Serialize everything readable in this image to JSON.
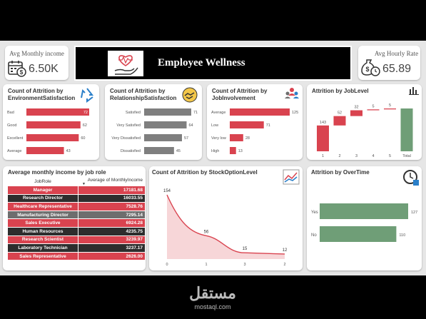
{
  "kpi_left": {
    "title": "Avg Monthly income",
    "value": "6.50K",
    "icon": "calendar-dollar-icon"
  },
  "kpi_right": {
    "title": "Avg Hourly Rate",
    "value": "65.89",
    "icon": "money-bag-clock-icon"
  },
  "banner": {
    "title": "Employee Wellness",
    "icon": "heart-in-hand-icon"
  },
  "cards": {
    "env": {
      "title": "Count of Attrition by EnvironmentSatisfaction"
    },
    "rel": {
      "title": "Count of Attrition by RelationshipSatisfaction"
    },
    "job": {
      "title": "Count of Attrition by JobInvolvement"
    },
    "level": {
      "title": "Attrition by JobLevel"
    },
    "income": {
      "title": "Average monthly income by job role"
    },
    "stock": {
      "title": "Count of Attrition by StockOptionLevel"
    },
    "overtime": {
      "title": "Attrition by OverTime"
    }
  },
  "table": {
    "headers": [
      "JobRole",
      "Average of MonthlyIncome"
    ],
    "rows": [
      {
        "role": "Manager",
        "value": "17181.68"
      },
      {
        "role": "Research Director",
        "value": "16033.55"
      },
      {
        "role": "Healthcare Representative",
        "value": "7528.76"
      },
      {
        "role": "Manufacturing Director",
        "value": "7295.14"
      },
      {
        "role": "Sales Executive",
        "value": "6924.28"
      },
      {
        "role": "Human Resources",
        "value": "4235.75"
      },
      {
        "role": "Research Scientist",
        "value": "3239.97"
      },
      {
        "role": "Laboratory Technician",
        "value": "3237.17"
      },
      {
        "role": "Sales Representative",
        "value": "2626.00"
      }
    ]
  },
  "watermark": {
    "arabic": "مستقل",
    "latin": "mostaql.com"
  },
  "chart_data": [
    {
      "type": "bar",
      "orientation": "horizontal",
      "categories": [
        "Bad",
        "Good",
        "Excellent",
        "Average"
      ],
      "values": [
        72,
        62,
        60,
        43
      ],
      "color": "#d9434f"
    },
    {
      "type": "bar",
      "orientation": "horizontal",
      "categories": [
        "Satisfied",
        "Very Satisfied",
        "Very Dissatisfied",
        "Dissatisfied"
      ],
      "values": [
        71,
        64,
        57,
        45
      ],
      "color": "#7f7f7f"
    },
    {
      "type": "bar",
      "orientation": "horizontal",
      "categories": [
        "Average",
        "Low",
        "Very low",
        "High"
      ],
      "values": [
        125,
        71,
        28,
        13
      ],
      "color": "#d9434f"
    },
    {
      "type": "waterfall",
      "categories": [
        "1",
        "2",
        "3",
        "4",
        "5",
        "Total"
      ],
      "values": [
        143,
        52,
        32,
        5,
        5,
        237
      ],
      "colors": {
        "increase": "#d9434f",
        "total": "#6f9e77"
      }
    },
    {
      "type": "area",
      "categories": [
        "0",
        "1",
        "3",
        "2"
      ],
      "values": [
        154,
        56,
        15,
        12
      ],
      "color": "#d9434f"
    },
    {
      "type": "bar",
      "orientation": "horizontal",
      "categories": [
        "Yes",
        "No"
      ],
      "values": [
        127,
        110
      ],
      "color": "#6f9e77"
    }
  ]
}
